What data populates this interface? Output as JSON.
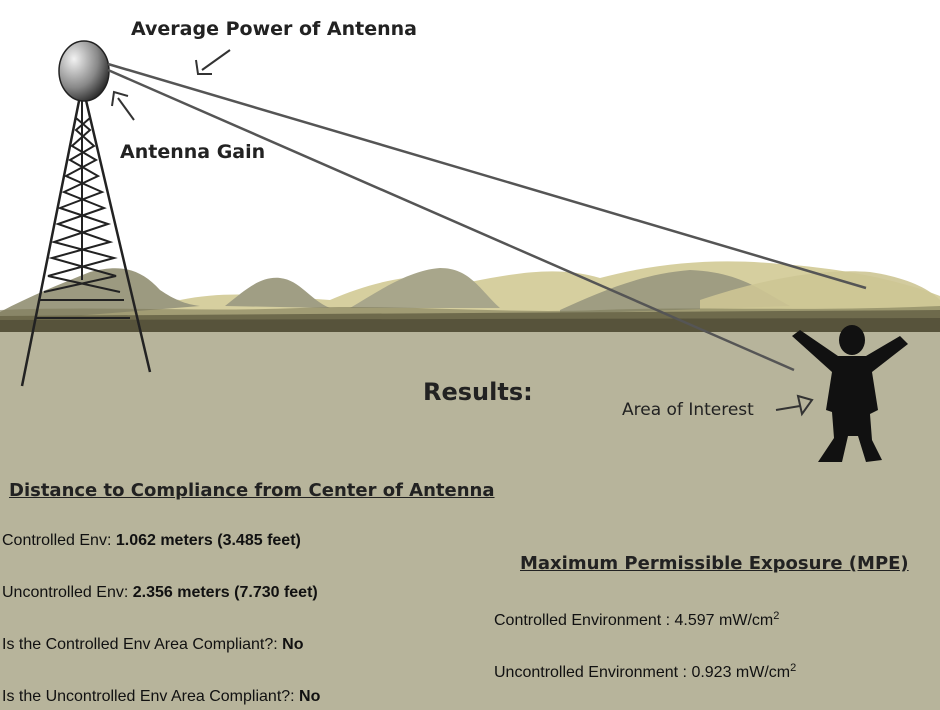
{
  "diagram": {
    "average_power_label": "Average Power of Antenna",
    "antenna_gain_label": "Antenna Gain",
    "results_label": "Results:",
    "area_of_interest_label": "Area of Interest"
  },
  "distance_section": {
    "heading": "Distance to Compliance from Center of Antenna",
    "controlled": {
      "label": "Controlled Env: ",
      "value": "1.062 meters (3.485 feet)"
    },
    "uncontrolled": {
      "label": "Uncontrolled Env: ",
      "value": "2.356 meters (7.730 feet)"
    },
    "controlled_compliant": {
      "label": "Is the Controlled Env Area Compliant?: ",
      "value": "No"
    },
    "uncontrolled_compliant": {
      "label": "Is the Uncontrolled Env Area Compliant?: ",
      "value": "No"
    }
  },
  "mpe_section": {
    "heading": "Maximum Permissible Exposure (MPE)",
    "controlled": {
      "label": "Controlled Environment : ",
      "value": "4.597 mW/cm",
      "exponent": "2"
    },
    "uncontrolled": {
      "label": "Uncontrolled Environment : ",
      "value": "0.923 mW/cm",
      "exponent": "2"
    }
  },
  "colors": {
    "ground": "#b7b49b",
    "ground_band": "#55513a",
    "hill_dark": "#9a987c",
    "hill_gold": "#cfc79a",
    "silhouette": "#111111"
  }
}
